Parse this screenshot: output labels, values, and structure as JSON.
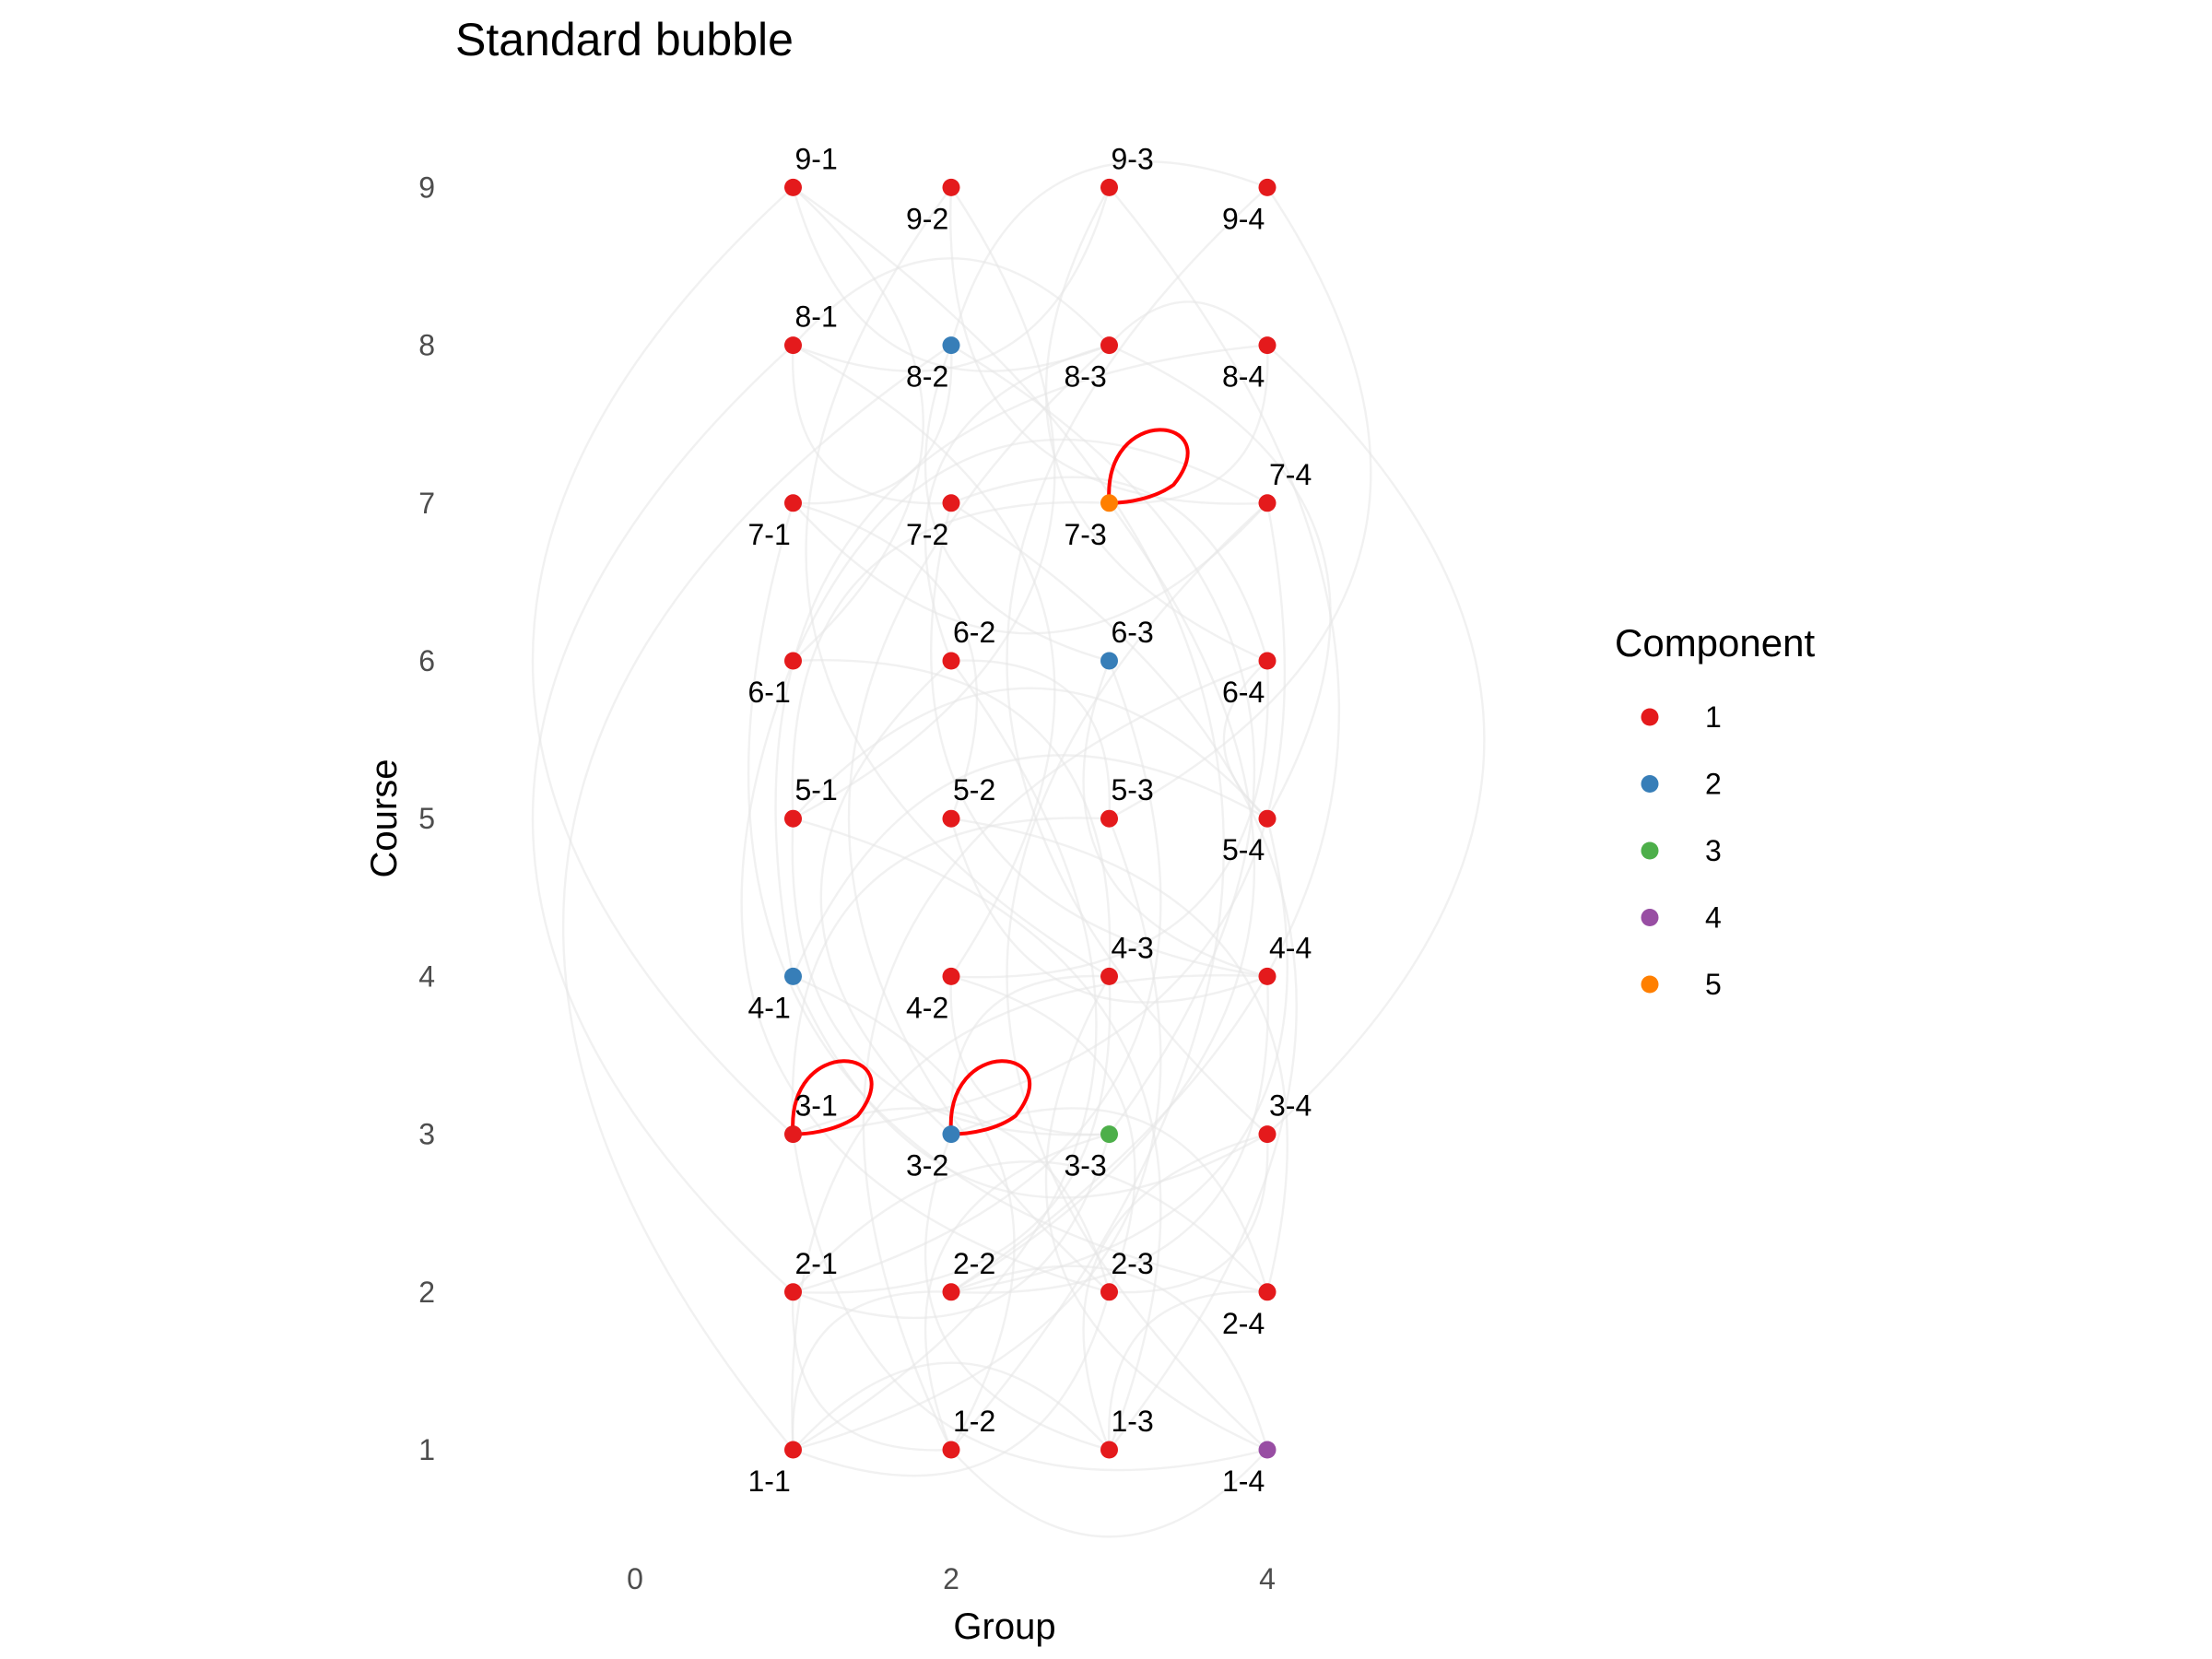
{
  "chart_data": {
    "type": "scatter",
    "title": "Standard bubble",
    "xlabel": "Group",
    "ylabel": "Course",
    "xlim": [
      -0.5,
      5.5
    ],
    "ylim": [
      0.5,
      9.5
    ],
    "x_ticks": [
      "0",
      "2",
      "4"
    ],
    "y_ticks": [
      "1",
      "2",
      "3",
      "4",
      "5",
      "6",
      "7",
      "8",
      "9"
    ],
    "grid": false,
    "legend": {
      "title": "Component",
      "placement": "right",
      "entries": [
        {
          "label": "1",
          "color": "#e41a1c"
        },
        {
          "label": "2",
          "color": "#377eb8"
        },
        {
          "label": "3",
          "color": "#4daf4a"
        },
        {
          "label": "4",
          "color": "#984ea3"
        },
        {
          "label": "5",
          "color": "#ff7f00"
        }
      ]
    },
    "nodes": [
      {
        "label": "1-1",
        "x": 1,
        "y": 1,
        "component": 1,
        "label_pos": "below"
      },
      {
        "label": "1-2",
        "x": 2,
        "y": 1,
        "component": 1,
        "label_pos": "above"
      },
      {
        "label": "1-3",
        "x": 3,
        "y": 1,
        "component": 1,
        "label_pos": "above"
      },
      {
        "label": "1-4",
        "x": 4,
        "y": 1,
        "component": 4,
        "label_pos": "below"
      },
      {
        "label": "2-1",
        "x": 1,
        "y": 2,
        "component": 1,
        "label_pos": "above"
      },
      {
        "label": "2-2",
        "x": 2,
        "y": 2,
        "component": 1,
        "label_pos": "above"
      },
      {
        "label": "2-3",
        "x": 3,
        "y": 2,
        "component": 1,
        "label_pos": "above"
      },
      {
        "label": "2-4",
        "x": 4,
        "y": 2,
        "component": 1,
        "label_pos": "below"
      },
      {
        "label": "3-1",
        "x": 1,
        "y": 3,
        "component": 1,
        "label_pos": "above"
      },
      {
        "label": "3-2",
        "x": 2,
        "y": 3,
        "component": 2,
        "label_pos": "below"
      },
      {
        "label": "3-3",
        "x": 3,
        "y": 3,
        "component": 3,
        "label_pos": "below"
      },
      {
        "label": "3-4",
        "x": 4,
        "y": 3,
        "component": 1,
        "label_pos": "above"
      },
      {
        "label": "4-1",
        "x": 1,
        "y": 4,
        "component": 2,
        "label_pos": "below"
      },
      {
        "label": "4-2",
        "x": 2,
        "y": 4,
        "component": 1,
        "label_pos": "below"
      },
      {
        "label": "4-3",
        "x": 3,
        "y": 4,
        "component": 1,
        "label_pos": "above"
      },
      {
        "label": "4-4",
        "x": 4,
        "y": 4,
        "component": 1,
        "label_pos": "above"
      },
      {
        "label": "5-1",
        "x": 1,
        "y": 5,
        "component": 1,
        "label_pos": "above"
      },
      {
        "label": "5-2",
        "x": 2,
        "y": 5,
        "component": 1,
        "label_pos": "above"
      },
      {
        "label": "5-3",
        "x": 3,
        "y": 5,
        "component": 1,
        "label_pos": "above"
      },
      {
        "label": "5-4",
        "x": 4,
        "y": 5,
        "component": 1,
        "label_pos": "below"
      },
      {
        "label": "6-1",
        "x": 1,
        "y": 6,
        "component": 1,
        "label_pos": "below"
      },
      {
        "label": "6-2",
        "x": 2,
        "y": 6,
        "component": 1,
        "label_pos": "above"
      },
      {
        "label": "6-3",
        "x": 3,
        "y": 6,
        "component": 2,
        "label_pos": "above"
      },
      {
        "label": "6-4",
        "x": 4,
        "y": 6,
        "component": 1,
        "label_pos": "below"
      },
      {
        "label": "7-1",
        "x": 1,
        "y": 7,
        "component": 1,
        "label_pos": "below"
      },
      {
        "label": "7-2",
        "x": 2,
        "y": 7,
        "component": 1,
        "label_pos": "below"
      },
      {
        "label": "7-3",
        "x": 3,
        "y": 7,
        "component": 5,
        "label_pos": "below"
      },
      {
        "label": "7-4",
        "x": 4,
        "y": 7,
        "component": 1,
        "label_pos": "above"
      },
      {
        "label": "8-1",
        "x": 1,
        "y": 8,
        "component": 1,
        "label_pos": "above"
      },
      {
        "label": "8-2",
        "x": 2,
        "y": 8,
        "component": 2,
        "label_pos": "below"
      },
      {
        "label": "8-3",
        "x": 3,
        "y": 8,
        "component": 1,
        "label_pos": "below"
      },
      {
        "label": "8-4",
        "x": 4,
        "y": 8,
        "component": 1,
        "label_pos": "below"
      },
      {
        "label": "9-1",
        "x": 1,
        "y": 9,
        "component": 1,
        "label_pos": "above"
      },
      {
        "label": "9-2",
        "x": 2,
        "y": 9,
        "component": 1,
        "label_pos": "below"
      },
      {
        "label": "9-3",
        "x": 3,
        "y": 9,
        "component": 1,
        "label_pos": "above"
      },
      {
        "label": "9-4",
        "x": 4,
        "y": 9,
        "component": 1,
        "label_pos": "below"
      }
    ],
    "self_loops": [
      "3-1",
      "3-2",
      "7-3"
    ],
    "loop_color": "#ff0000",
    "edge_color": "#e6e6e6",
    "edges": [
      [
        "9-1",
        "8-3"
      ],
      [
        "9-1",
        "6-1"
      ],
      [
        "9-1",
        "3-1"
      ],
      [
        "9-1",
        "1-2"
      ],
      [
        "9-2",
        "7-4"
      ],
      [
        "9-2",
        "5-1"
      ],
      [
        "9-2",
        "4-3"
      ],
      [
        "9-3",
        "8-1"
      ],
      [
        "9-3",
        "6-4"
      ],
      [
        "9-3",
        "2-2"
      ],
      [
        "9-4",
        "8-2"
      ],
      [
        "9-4",
        "5-3"
      ],
      [
        "9-4",
        "3-4"
      ],
      [
        "8-1",
        "8-3"
      ],
      [
        "8-1",
        "7-2"
      ],
      [
        "8-1",
        "4-2"
      ],
      [
        "8-1",
        "2-1"
      ],
      [
        "8-2",
        "7-1"
      ],
      [
        "8-2",
        "6-3"
      ],
      [
        "8-2",
        "3-3"
      ],
      [
        "8-2",
        "1-1"
      ],
      [
        "8-3",
        "8-4"
      ],
      [
        "8-3",
        "6-2"
      ],
      [
        "8-3",
        "5-4"
      ],
      [
        "8-3",
        "2-3"
      ],
      [
        "8-4",
        "7-3"
      ],
      [
        "8-4",
        "4-1"
      ],
      [
        "8-4",
        "3-4"
      ],
      [
        "7-1",
        "7-4"
      ],
      [
        "7-1",
        "5-2"
      ],
      [
        "7-1",
        "2-4"
      ],
      [
        "7-2",
        "6-4"
      ],
      [
        "7-2",
        "4-4"
      ],
      [
        "7-2",
        "1-3"
      ],
      [
        "7-3",
        "5-1"
      ],
      [
        "7-3",
        "2-2"
      ],
      [
        "7-4",
        "6-1"
      ],
      [
        "7-4",
        "3-1"
      ],
      [
        "7-4",
        "1-4"
      ],
      [
        "6-1",
        "4-3"
      ],
      [
        "6-1",
        "2-3"
      ],
      [
        "6-2",
        "5-3"
      ],
      [
        "6-2",
        "3-2"
      ],
      [
        "6-2",
        "1-1"
      ],
      [
        "6-3",
        "4-4"
      ],
      [
        "6-3",
        "2-1"
      ],
      [
        "6-4",
        "5-4"
      ],
      [
        "6-4",
        "4-2"
      ],
      [
        "6-4",
        "1-2"
      ],
      [
        "5-1",
        "5-4"
      ],
      [
        "5-1",
        "3-3"
      ],
      [
        "5-1",
        "1-3"
      ],
      [
        "5-2",
        "4-4"
      ],
      [
        "5-2",
        "2-4"
      ],
      [
        "5-3",
        "3-1"
      ],
      [
        "5-3",
        "1-1"
      ],
      [
        "5-4",
        "4-1"
      ],
      [
        "5-4",
        "2-2"
      ],
      [
        "4-1",
        "3-4"
      ],
      [
        "4-1",
        "1-2"
      ],
      [
        "4-2",
        "3-3"
      ],
      [
        "4-2",
        "2-3"
      ],
      [
        "4-3",
        "3-2"
      ],
      [
        "4-3",
        "2-1"
      ],
      [
        "4-3",
        "1-4"
      ],
      [
        "4-4",
        "2-2"
      ],
      [
        "4-4",
        "1-1"
      ],
      [
        "3-1",
        "2-3"
      ],
      [
        "3-1",
        "1-4"
      ],
      [
        "3-2",
        "2-4"
      ],
      [
        "3-2",
        "1-3"
      ],
      [
        "3-3",
        "2-1"
      ],
      [
        "3-3",
        "1-2"
      ],
      [
        "3-4",
        "2-3"
      ],
      [
        "3-4",
        "1-3"
      ],
      [
        "2-1",
        "2-4"
      ],
      [
        "2-1",
        "1-2"
      ],
      [
        "2-2",
        "1-4"
      ],
      [
        "2-2",
        "1-1"
      ],
      [
        "2-3",
        "1-1"
      ],
      [
        "2-4",
        "1-3"
      ],
      [
        "1-1",
        "1-3"
      ],
      [
        "1-2",
        "1-4"
      ]
    ]
  }
}
